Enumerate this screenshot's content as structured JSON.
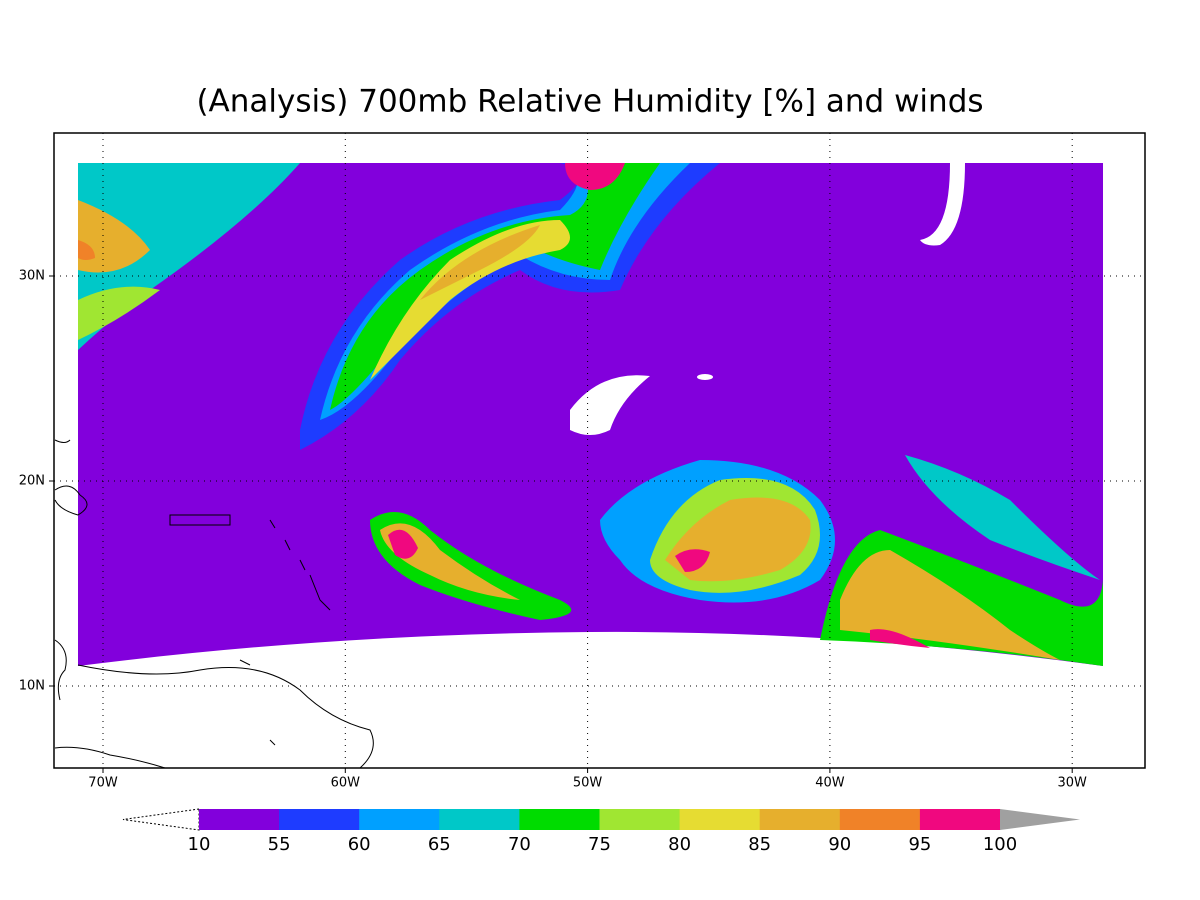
{
  "title": "(Analysis) 700mb Relative Humidity [%] and winds",
  "map": {
    "x_ticks": [
      "70W",
      "60W",
      "50W",
      "40W",
      "30W"
    ],
    "y_ticks": [
      "30N",
      "20N",
      "10N"
    ]
  },
  "colorbar": {
    "labels": [
      10,
      55,
      60,
      65,
      70,
      75,
      80,
      85,
      90,
      95,
      100
    ],
    "colors": [
      "#8200dc",
      "#1e3cff",
      "#00a0ff",
      "#00c8c8",
      "#00dc00",
      "#a0e632",
      "#e6dc32",
      "#e6af2d",
      "#f08228",
      "#f0087f"
    ],
    "over_color": "#a0a0a0"
  }
}
